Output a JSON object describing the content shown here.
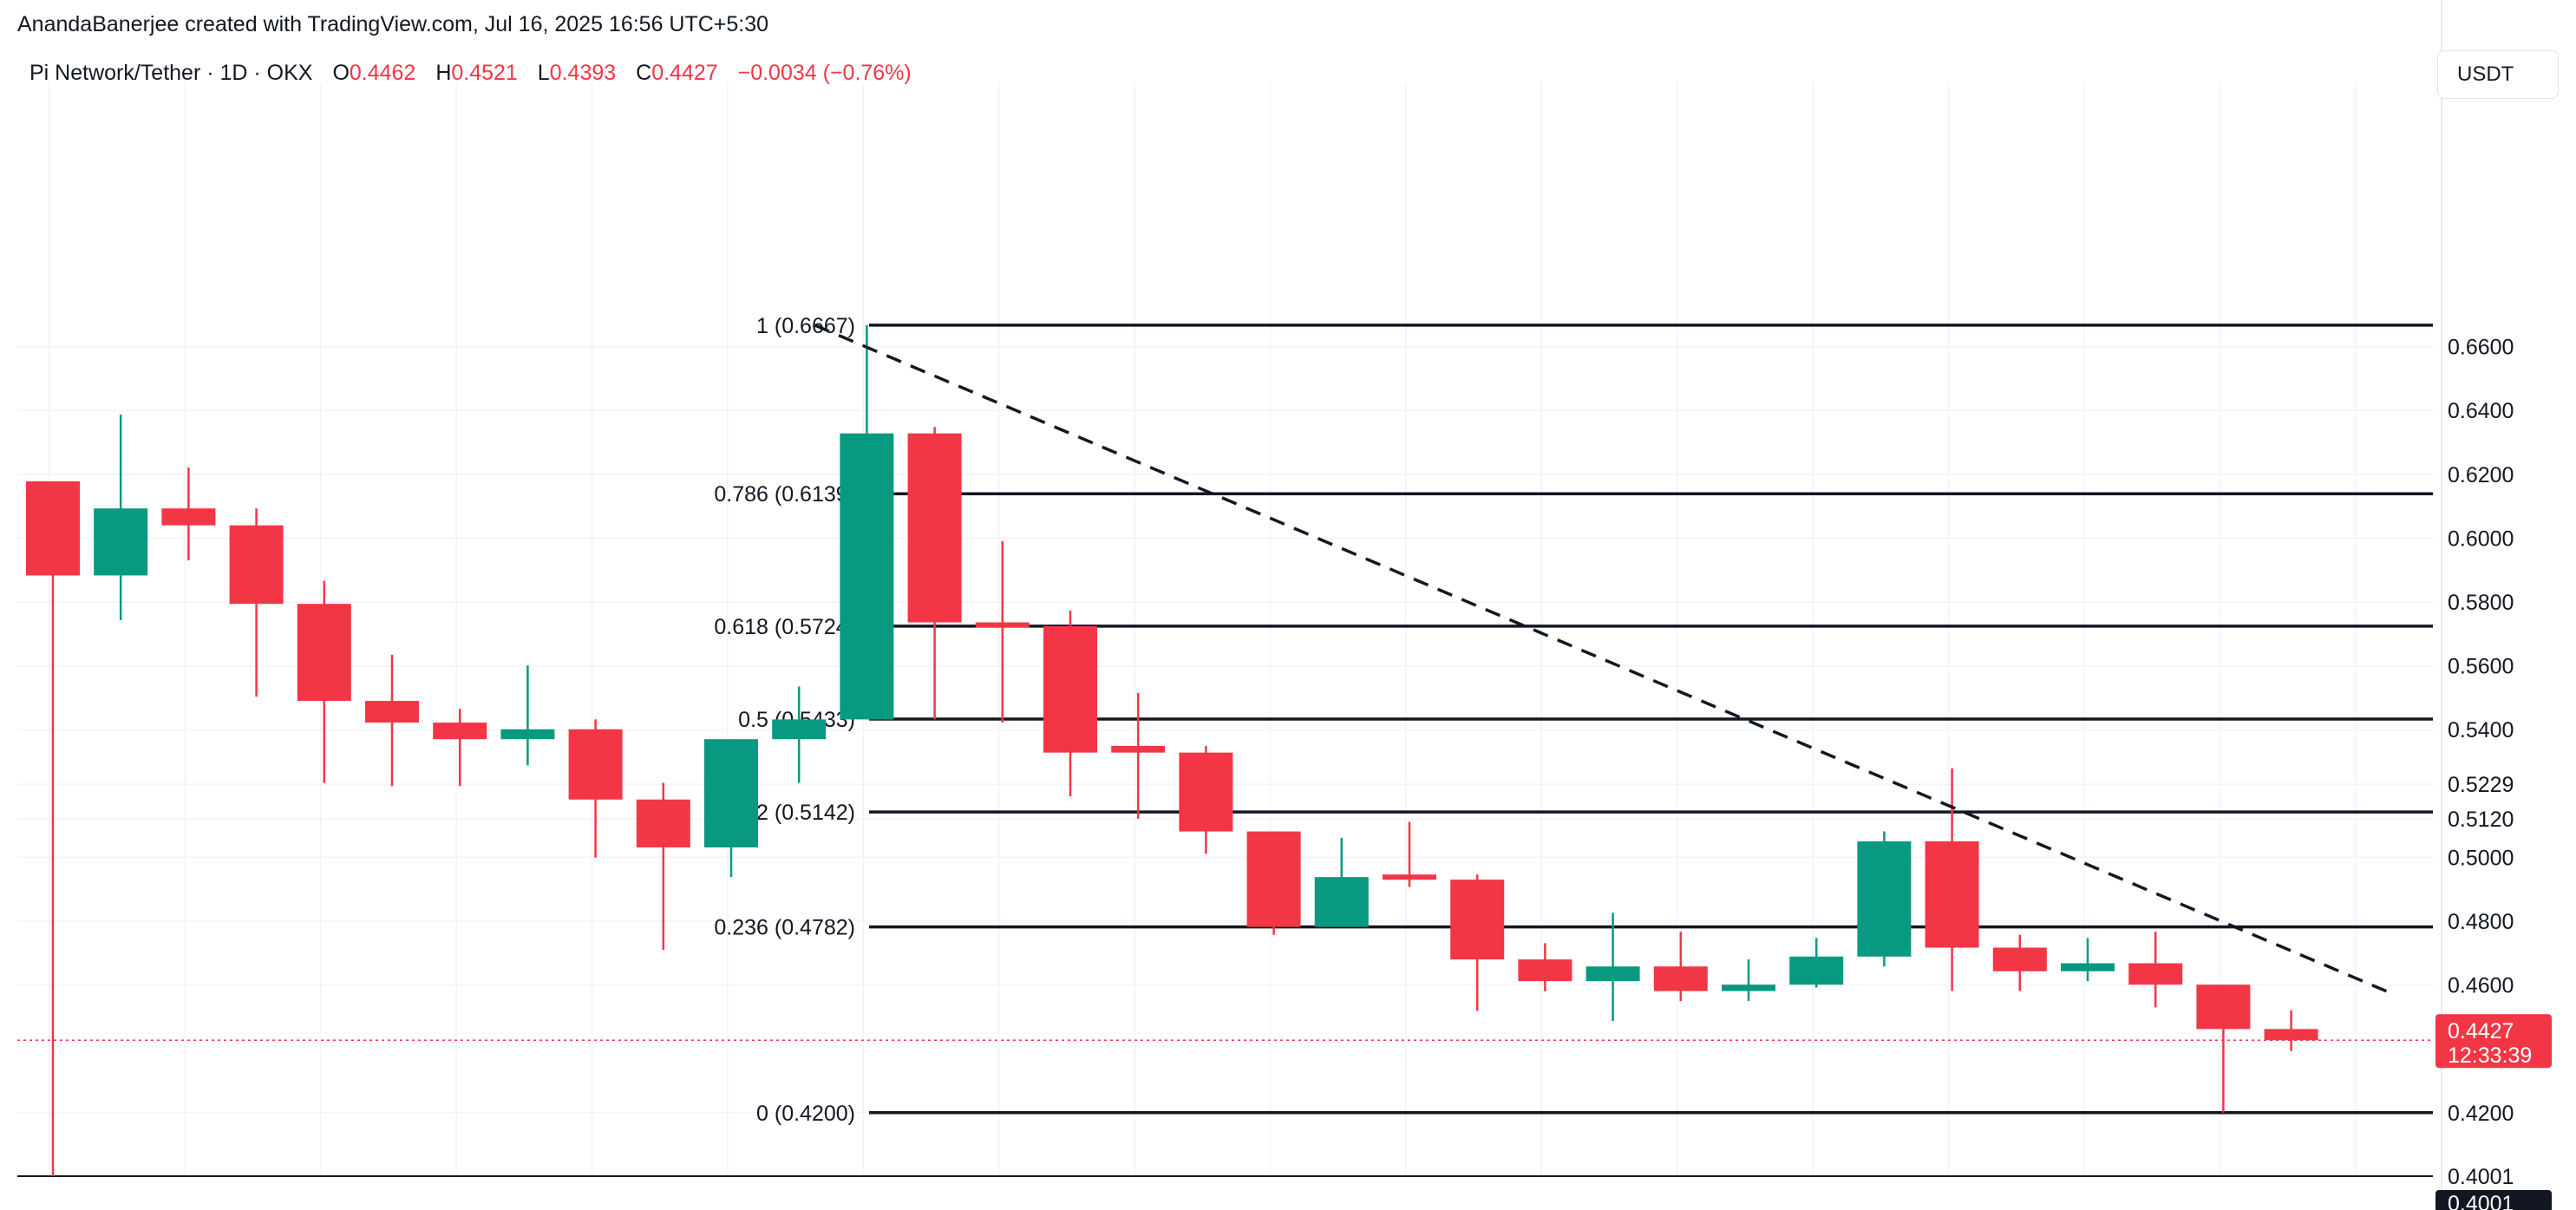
{
  "header": {
    "credit": "AnandaBanerjee created with TradingView.com, Jul 16, 2025 16:56 UTC+5:30"
  },
  "legend": {
    "symbol": "Pi Network/Tether · 1D · OKX",
    "open_label": "O",
    "open": "0.4462",
    "high_label": "H",
    "high": "0.4521",
    "low_label": "L",
    "low": "0.4393",
    "close_label": "C",
    "close": "0.4427",
    "change": "−0.0034 (−0.76%)"
  },
  "price_axis": {
    "currency": "USDT",
    "ticks": [
      "0.6600",
      "0.6400",
      "0.6200",
      "0.6000",
      "0.5800",
      "0.5600",
      "0.5400",
      "0.5229",
      "0.5120",
      "0.5000",
      "0.4800",
      "0.4600",
      "0.4200",
      "0.4001"
    ],
    "current_price": "0.4427",
    "countdown": "12:33:39",
    "bottom_label": "0.4001"
  },
  "colors": {
    "up": "#089981",
    "down": "#f23645",
    "grid": "#f0f3fa",
    "fib_line": "#131722",
    "price_line": "#f23645"
  },
  "chart_data": {
    "type": "candlestick",
    "title": "",
    "ylabel": "USDT",
    "ylim": [
      0.4,
      0.674
    ],
    "grid": true,
    "candles": [
      {
        "o": 0.6178,
        "h": 0.6178,
        "l": 0.4001,
        "c": 0.5883
      },
      {
        "o": 0.5883,
        "h": 0.6387,
        "l": 0.5743,
        "c": 0.6093
      },
      {
        "o": 0.6093,
        "h": 0.6221,
        "l": 0.593,
        "c": 0.604
      },
      {
        "o": 0.604,
        "h": 0.6093,
        "l": 0.5503,
        "c": 0.5794
      },
      {
        "o": 0.5794,
        "h": 0.5866,
        "l": 0.5233,
        "c": 0.549
      },
      {
        "o": 0.549,
        "h": 0.5634,
        "l": 0.5223,
        "c": 0.5422
      },
      {
        "o": 0.5422,
        "h": 0.5465,
        "l": 0.5223,
        "c": 0.537
      },
      {
        "o": 0.537,
        "h": 0.5601,
        "l": 0.5288,
        "c": 0.5401
      },
      {
        "o": 0.5401,
        "h": 0.5432,
        "l": 0.4999,
        "c": 0.5181
      },
      {
        "o": 0.5181,
        "h": 0.5233,
        "l": 0.471,
        "c": 0.5031
      },
      {
        "o": 0.5031,
        "h": 0.537,
        "l": 0.4938,
        "c": 0.537
      },
      {
        "o": 0.537,
        "h": 0.5535,
        "l": 0.5233,
        "c": 0.5432
      },
      {
        "o": 0.5432,
        "h": 0.6667,
        "l": 0.5432,
        "c": 0.6328
      },
      {
        "o": 0.6328,
        "h": 0.6348,
        "l": 0.5432,
        "c": 0.5736
      },
      {
        "o": 0.5736,
        "h": 0.599,
        "l": 0.5422,
        "c": 0.5724
      },
      {
        "o": 0.5724,
        "h": 0.5773,
        "l": 0.5191,
        "c": 0.5328
      },
      {
        "o": 0.5349,
        "h": 0.5515,
        "l": 0.5121,
        "c": 0.5328
      },
      {
        "o": 0.5328,
        "h": 0.5349,
        "l": 0.5011,
        "c": 0.5081
      },
      {
        "o": 0.5081,
        "h": 0.5081,
        "l": 0.4757,
        "c": 0.4782
      },
      {
        "o": 0.4782,
        "h": 0.5061,
        "l": 0.4782,
        "c": 0.4938
      },
      {
        "o": 0.4946,
        "h": 0.5111,
        "l": 0.4907,
        "c": 0.493
      },
      {
        "o": 0.493,
        "h": 0.4946,
        "l": 0.4519,
        "c": 0.468
      },
      {
        "o": 0.468,
        "h": 0.4731,
        "l": 0.458,
        "c": 0.4612
      },
      {
        "o": 0.4612,
        "h": 0.4826,
        "l": 0.4487,
        "c": 0.4658
      },
      {
        "o": 0.4658,
        "h": 0.4767,
        "l": 0.455,
        "c": 0.4581
      },
      {
        "o": 0.4581,
        "h": 0.468,
        "l": 0.455,
        "c": 0.4601
      },
      {
        "o": 0.4601,
        "h": 0.4747,
        "l": 0.4592,
        "c": 0.4689
      },
      {
        "o": 0.4689,
        "h": 0.5081,
        "l": 0.4658,
        "c": 0.505
      },
      {
        "o": 0.505,
        "h": 0.5279,
        "l": 0.4581,
        "c": 0.4717
      },
      {
        "o": 0.4717,
        "h": 0.4757,
        "l": 0.4581,
        "c": 0.4643
      },
      {
        "o": 0.4643,
        "h": 0.4747,
        "l": 0.4612,
        "c": 0.4668
      },
      {
        "o": 0.4668,
        "h": 0.4767,
        "l": 0.453,
        "c": 0.4601
      },
      {
        "o": 0.4601,
        "h": 0.4601,
        "l": 0.42,
        "c": 0.4462
      },
      {
        "o": 0.4462,
        "h": 0.4521,
        "l": 0.4393,
        "c": 0.4427
      }
    ],
    "fib_levels": [
      {
        "label": "1 (0.6667)",
        "value": 0.6667
      },
      {
        "label": "0.786 (0.6139)",
        "value": 0.6139
      },
      {
        "label": "0.618 (0.5724)",
        "value": 0.5724
      },
      {
        "label": "0.5 (0.5433)",
        "value": 0.5433
      },
      {
        "label": "0.382 (0.5142)",
        "value": 0.5142
      },
      {
        "label": "0.236 (0.4782)",
        "value": 0.4782
      },
      {
        "label": "0 (0.4200)",
        "value": 0.42
      }
    ],
    "trendline": {
      "from": {
        "index": 12,
        "value": 0.6667
      },
      "to": {
        "index": 35,
        "value": 0.4573
      }
    },
    "baseline_value": 0.4001
  }
}
